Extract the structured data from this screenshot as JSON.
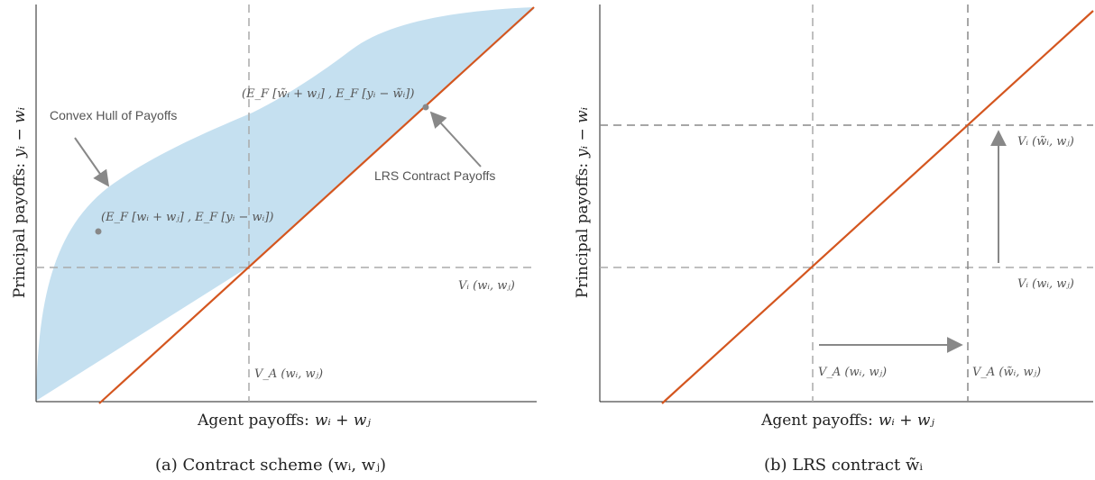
{
  "colors": {
    "hull_fill": "#c5e0f0",
    "lrs_line": "#d4561f",
    "dashed": "#aaaaaa",
    "dashed_dark": "#888888",
    "annotation": "#555555",
    "arrow": "#888888"
  },
  "panel_a": {
    "ylabel_text": "Principal payoffs:",
    "ylabel_math": "yᵢ − wᵢ",
    "xlabel_text": "Agent payoffs:",
    "xlabel_math": "wᵢ + wⱼ",
    "caption": "(a) Contract scheme (wᵢ, wⱼ)",
    "hull_label": "Convex Hull of Payoffs",
    "lrs_label": "LRS Contract Payoffs",
    "point_top_label": "(E_F [w̃ᵢ + wⱼ] , E_F [yᵢ − w̃ᵢ])",
    "point_low_label": "(E_F [wᵢ + wⱼ] , E_F [yᵢ − wᵢ])",
    "vi_label": "Vᵢ (wᵢ, wⱼ)",
    "va_label": "V_A (wᵢ, wⱼ)"
  },
  "panel_b": {
    "ylabel_text": "Principal payoffs:",
    "ylabel_math": "yᵢ − wᵢ",
    "xlabel_text": "Agent payoffs:",
    "xlabel_math": "wᵢ + wⱼ",
    "caption": "(b) LRS contract w̃ᵢ",
    "vi_tilde_label": "Vᵢ (w̃ᵢ, wⱼ)",
    "vi_label": "Vᵢ (wᵢ, wⱼ)",
    "va_label": "V_A (wᵢ, wⱼ)",
    "va_tilde_label": "V_A (w̃ᵢ, wⱼ)"
  }
}
